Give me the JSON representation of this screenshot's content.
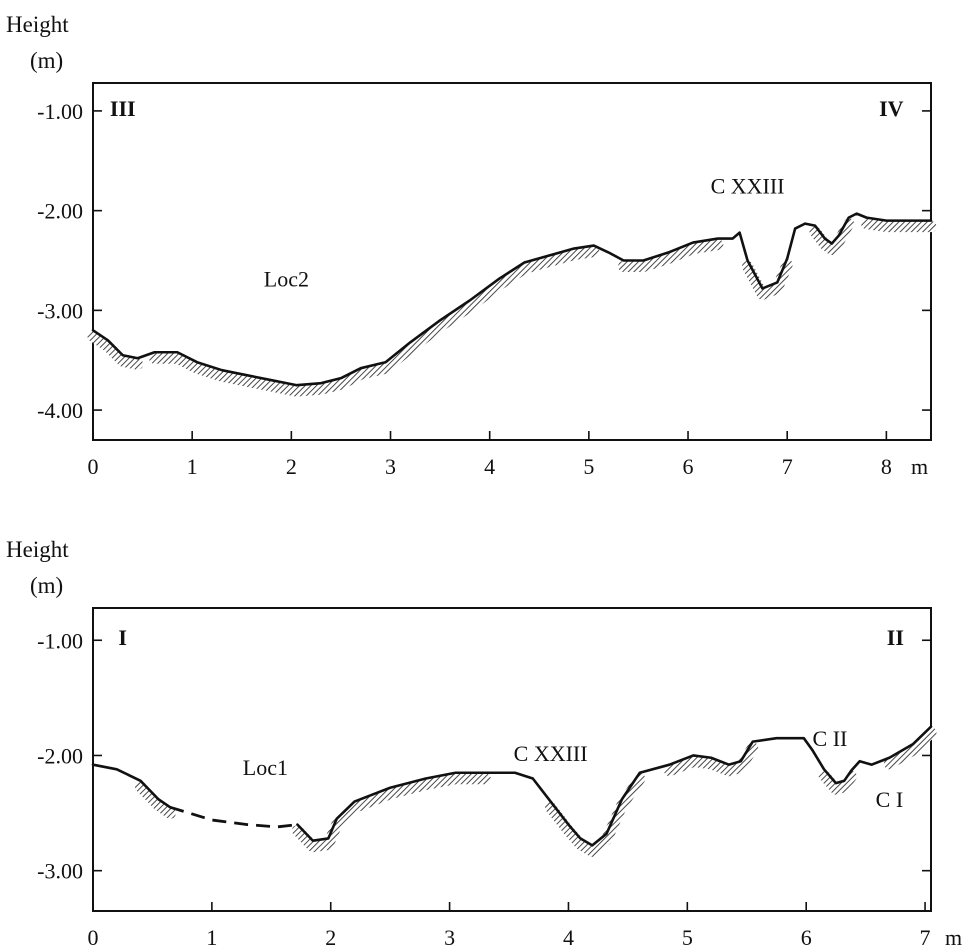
{
  "chart_data": [
    {
      "type": "line",
      "ylabel": "Height",
      "yunit": "(m)",
      "xunit": "m",
      "xlim": [
        0,
        8.45
      ],
      "ylim": [
        -4.3,
        -0.72
      ],
      "x_ticks": [
        0,
        1,
        2,
        3,
        4,
        5,
        6,
        7,
        8
      ],
      "x_tick_labels": [
        "0",
        "1",
        "2",
        "3",
        "4",
        "5",
        "6",
        "7",
        "8"
      ],
      "y_ticks": [
        -1,
        -2,
        -3,
        -4
      ],
      "y_tick_labels": [
        "-1.00",
        "-2.00",
        "-3.00",
        "-4.00"
      ],
      "grid": false,
      "corner_labels": [
        {
          "text": "III",
          "x": 0.3,
          "y": -0.97
        },
        {
          "text": "IV",
          "x": 8.05,
          "y": -0.97
        }
      ],
      "annotations": [
        {
          "text": "Loc2",
          "x": 1.95,
          "y": -2.68
        },
        {
          "text": "C XXIII",
          "x": 6.6,
          "y": -1.75
        }
      ],
      "series": [
        {
          "x": [
            0,
            0.15,
            0.3,
            0.45,
            0.62,
            0.85,
            1.05,
            1.3,
            1.55,
            1.8,
            2.05,
            2.3,
            2.5,
            2.7,
            2.95,
            3.2,
            3.5,
            3.8,
            4.1,
            4.35,
            4.6,
            4.85,
            5.05,
            5.2,
            5.35,
            5.55,
            5.8,
            6.05,
            6.3,
            6.45,
            6.52,
            6.6,
            6.75,
            6.9,
            7.0,
            7.08,
            7.18,
            7.28,
            7.38,
            7.45,
            7.52,
            7.62,
            7.7,
            7.8,
            8.0,
            8.2,
            8.45
          ],
          "y": [
            -3.2,
            -3.3,
            -3.45,
            -3.48,
            -3.42,
            -3.42,
            -3.52,
            -3.6,
            -3.65,
            -3.7,
            -3.75,
            -3.73,
            -3.68,
            -3.58,
            -3.52,
            -3.32,
            -3.1,
            -2.9,
            -2.68,
            -2.52,
            -2.45,
            -2.38,
            -2.35,
            -2.42,
            -2.5,
            -2.5,
            -2.42,
            -2.32,
            -2.28,
            -2.28,
            -2.22,
            -2.5,
            -2.78,
            -2.72,
            -2.48,
            -2.18,
            -2.13,
            -2.15,
            -2.28,
            -2.33,
            -2.25,
            -2.07,
            -2.03,
            -2.07,
            -2.1,
            -2.1,
            -2.1
          ],
          "hatch_ranges": [
            [
              0,
              0.45
            ],
            [
              0.62,
              5.05
            ],
            [
              5.35,
              6.3
            ],
            [
              6.6,
              7.05
            ],
            [
              7.22,
              7.62
            ],
            [
              7.72,
              8.45
            ]
          ]
        }
      ]
    },
    {
      "type": "line",
      "ylabel": "Height",
      "yunit": "(m)",
      "xunit": "m",
      "xlim": [
        0,
        7.05
      ],
      "ylim": [
        -3.35,
        -0.72
      ],
      "x_ticks": [
        0,
        1,
        2,
        3,
        4,
        5,
        6,
        7
      ],
      "x_tick_labels": [
        "0",
        "1",
        "2",
        "3",
        "4",
        "5",
        "6",
        "7"
      ],
      "y_ticks": [
        -1,
        -2,
        -3
      ],
      "y_tick_labels": [
        "-1.00",
        "-2.00",
        "-3.00"
      ],
      "grid": false,
      "corner_labels": [
        {
          "text": "I",
          "x": 0.25,
          "y": -0.97
        },
        {
          "text": "II",
          "x": 6.75,
          "y": -0.97
        }
      ],
      "annotations": [
        {
          "text": "Loc1",
          "x": 1.45,
          "y": -2.1
        },
        {
          "text": "C XXIII",
          "x": 3.85,
          "y": -1.98
        },
        {
          "text": "C II",
          "x": 6.2,
          "y": -1.85
        },
        {
          "text": "C I",
          "x": 6.7,
          "y": -2.38
        }
      ],
      "gap": {
        "x": [
          0.65,
          1.0,
          1.3,
          1.55,
          1.72
        ],
        "y": [
          -2.45,
          -2.56,
          -2.6,
          -2.62,
          -2.6
        ]
      },
      "series": [
        {
          "x": [
            0,
            0.2,
            0.4,
            0.55,
            0.65
          ],
          "y": [
            -2.08,
            -2.12,
            -2.22,
            -2.38,
            -2.45
          ],
          "hatch_ranges": [
            [
              0.4,
              0.65
            ]
          ]
        },
        {
          "x": [
            1.72,
            1.85,
            1.98,
            2.05,
            2.2,
            2.5,
            2.8,
            3.05,
            3.3,
            3.55,
            3.7,
            3.85,
            4.0,
            4.1,
            4.2,
            4.32,
            4.45,
            4.6,
            4.85,
            5.05,
            5.2,
            5.35,
            5.45,
            5.55,
            5.75,
            5.98,
            6.05,
            6.15,
            6.25,
            6.32,
            6.38,
            6.45,
            6.55,
            6.7,
            6.9,
            7.05
          ],
          "y": [
            -2.6,
            -2.74,
            -2.72,
            -2.55,
            -2.4,
            -2.28,
            -2.2,
            -2.15,
            -2.15,
            -2.15,
            -2.2,
            -2.4,
            -2.6,
            -2.72,
            -2.78,
            -2.68,
            -2.38,
            -2.15,
            -2.08,
            -2.0,
            -2.02,
            -2.08,
            -2.05,
            -1.88,
            -1.85,
            -1.85,
            -1.95,
            -2.12,
            -2.24,
            -2.22,
            -2.13,
            -2.05,
            -2.08,
            -2.02,
            -1.9,
            -1.75
          ],
          "hatch_ranges": [
            [
              1.72,
              3.45
            ],
            [
              3.85,
              4.62
            ],
            [
              4.85,
              5.55
            ],
            [
              6.1,
              6.4
            ],
            [
              6.6,
              7.05
            ]
          ]
        }
      ]
    }
  ]
}
